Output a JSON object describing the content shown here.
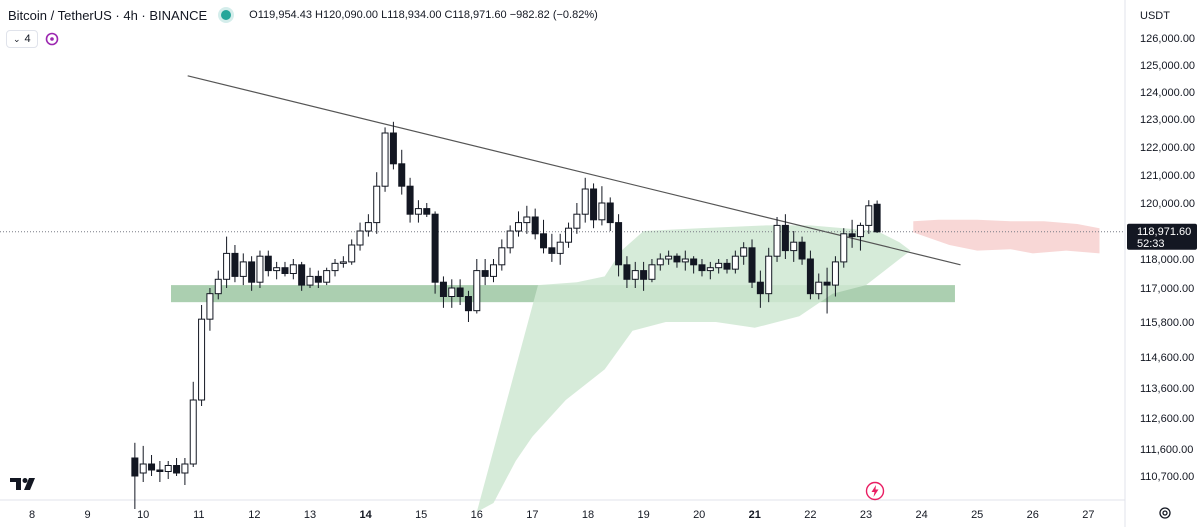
{
  "header": {
    "symbol_title": "Bitcoin / TetherUS · 4h · BINANCE",
    "ohlc": "O119,954.43 H120,090.00 L118,934.00 C118,971.60 −982.82 (−0.82%)",
    "indicator_count": "4",
    "currency": "USDT"
  },
  "current_price": {
    "label": "118,971.60",
    "countdown": "52:33",
    "value": 118971.6
  },
  "colors": {
    "candle_outline": "#131722",
    "candle_up_fill": "#ffffff",
    "candle_down_fill": "#131722",
    "support_zone": "#8fbf96",
    "cloud_green": "#cfe8d2",
    "cloud_red": "#f7d0cf",
    "trendline": "#555555",
    "price_line": "#787b86"
  },
  "chart_data": {
    "type": "candlestick",
    "title": "Bitcoin / TetherUS · 4h · BINANCE",
    "xlabel": "",
    "ylabel": "",
    "x_ticks": [
      "8",
      "9",
      "10",
      "11",
      "12",
      "13",
      "14",
      "15",
      "16",
      "17",
      "18",
      "19",
      "20",
      "21",
      "22",
      "23",
      "24",
      "25",
      "26",
      "27"
    ],
    "y_ticks": [
      126000,
      125000,
      124000,
      123000,
      122000,
      121000,
      120000,
      118000,
      117000,
      115800,
      114600,
      113600,
      112600,
      111600,
      110700
    ],
    "y_tick_labels": [
      "126,000.00",
      "125,000.00",
      "124,000.00",
      "123,000.00",
      "122,000.00",
      "121,000.00",
      "120,000.00",
      "118,000.00",
      "117,000.00",
      "115,800.00",
      "114,600.00",
      "113,600.00",
      "112,600.00",
      "111,600.00",
      "110,700.00"
    ],
    "candles": [
      {
        "d": 9.85,
        "o": 111300,
        "h": 111800,
        "l": 109600,
        "c": 110700
      },
      {
        "d": 10.0,
        "o": 110800,
        "h": 111700,
        "l": 110500,
        "c": 111100
      },
      {
        "d": 10.15,
        "o": 111100,
        "h": 111400,
        "l": 110700,
        "c": 110900
      },
      {
        "d": 10.3,
        "o": 110900,
        "h": 111200,
        "l": 110500,
        "c": 110850
      },
      {
        "d": 10.45,
        "o": 110850,
        "h": 111200,
        "l": 110600,
        "c": 111050
      },
      {
        "d": 10.6,
        "o": 111050,
        "h": 111300,
        "l": 110700,
        "c": 110800
      },
      {
        "d": 10.75,
        "o": 110800,
        "h": 111300,
        "l": 110400,
        "c": 111100
      },
      {
        "d": 10.9,
        "o": 111100,
        "h": 113800,
        "l": 111000,
        "c": 113200
      },
      {
        "d": 11.05,
        "o": 113200,
        "h": 116400,
        "l": 113000,
        "c": 115900
      },
      {
        "d": 11.2,
        "o": 115900,
        "h": 117000,
        "l": 115500,
        "c": 116800
      },
      {
        "d": 11.35,
        "o": 116800,
        "h": 117600,
        "l": 116600,
        "c": 117300
      },
      {
        "d": 11.5,
        "o": 117300,
        "h": 118800,
        "l": 117000,
        "c": 118200
      },
      {
        "d": 11.65,
        "o": 118200,
        "h": 118500,
        "l": 117200,
        "c": 117400
      },
      {
        "d": 11.8,
        "o": 117400,
        "h": 118200,
        "l": 117100,
        "c": 117900
      },
      {
        "d": 11.95,
        "o": 117900,
        "h": 118100,
        "l": 116900,
        "c": 117200
      },
      {
        "d": 12.1,
        "o": 117200,
        "h": 118300,
        "l": 117000,
        "c": 118100
      },
      {
        "d": 12.25,
        "o": 118100,
        "h": 118300,
        "l": 117400,
        "c": 117600
      },
      {
        "d": 12.4,
        "o": 117600,
        "h": 117900,
        "l": 117300,
        "c": 117700
      },
      {
        "d": 12.55,
        "o": 117700,
        "h": 117900,
        "l": 117400,
        "c": 117500
      },
      {
        "d": 12.7,
        "o": 117500,
        "h": 118000,
        "l": 117300,
        "c": 117800
      },
      {
        "d": 12.85,
        "o": 117800,
        "h": 117900,
        "l": 116900,
        "c": 117100
      },
      {
        "d": 13.0,
        "o": 117100,
        "h": 117700,
        "l": 117000,
        "c": 117400
      },
      {
        "d": 13.15,
        "o": 117400,
        "h": 117600,
        "l": 117000,
        "c": 117200
      },
      {
        "d": 13.3,
        "o": 117200,
        "h": 117700,
        "l": 117100,
        "c": 117600
      },
      {
        "d": 13.45,
        "o": 117600,
        "h": 118000,
        "l": 117400,
        "c": 117850
      },
      {
        "d": 13.6,
        "o": 117850,
        "h": 118100,
        "l": 117700,
        "c": 117900
      },
      {
        "d": 13.75,
        "o": 117900,
        "h": 118700,
        "l": 117800,
        "c": 118500
      },
      {
        "d": 13.9,
        "o": 118500,
        "h": 119300,
        "l": 118300,
        "c": 119000
      },
      {
        "d": 14.05,
        "o": 119000,
        "h": 119600,
        "l": 118800,
        "c": 119300
      },
      {
        "d": 14.2,
        "o": 119300,
        "h": 121100,
        "l": 118900,
        "c": 120600
      },
      {
        "d": 14.35,
        "o": 120600,
        "h": 122700,
        "l": 120400,
        "c": 122500
      },
      {
        "d": 14.5,
        "o": 122500,
        "h": 122900,
        "l": 121200,
        "c": 121400
      },
      {
        "d": 14.65,
        "o": 121400,
        "h": 121900,
        "l": 120300,
        "c": 120600
      },
      {
        "d": 14.8,
        "o": 120600,
        "h": 120900,
        "l": 119300,
        "c": 119600
      },
      {
        "d": 14.95,
        "o": 119600,
        "h": 120100,
        "l": 119300,
        "c": 119800
      },
      {
        "d": 15.1,
        "o": 119800,
        "h": 120000,
        "l": 119500,
        "c": 119600
      },
      {
        "d": 15.25,
        "o": 119600,
        "h": 119700,
        "l": 116800,
        "c": 117200
      },
      {
        "d": 15.4,
        "o": 117200,
        "h": 117400,
        "l": 116300,
        "c": 116700
      },
      {
        "d": 15.55,
        "o": 116700,
        "h": 117300,
        "l": 116300,
        "c": 117000
      },
      {
        "d": 15.7,
        "o": 117000,
        "h": 117300,
        "l": 116400,
        "c": 116700
      },
      {
        "d": 15.85,
        "o": 116700,
        "h": 116900,
        "l": 115800,
        "c": 116200
      },
      {
        "d": 16.0,
        "o": 116200,
        "h": 118000,
        "l": 116100,
        "c": 117600
      },
      {
        "d": 16.15,
        "o": 117600,
        "h": 118000,
        "l": 117100,
        "c": 117400
      },
      {
        "d": 16.3,
        "o": 117400,
        "h": 118000,
        "l": 117200,
        "c": 117800
      },
      {
        "d": 16.45,
        "o": 117800,
        "h": 118700,
        "l": 117600,
        "c": 118400
      },
      {
        "d": 16.6,
        "o": 118400,
        "h": 119200,
        "l": 118200,
        "c": 119000
      },
      {
        "d": 16.75,
        "o": 119000,
        "h": 119700,
        "l": 118800,
        "c": 119300
      },
      {
        "d": 16.9,
        "o": 119300,
        "h": 119900,
        "l": 118900,
        "c": 119500
      },
      {
        "d": 17.05,
        "o": 119500,
        "h": 119800,
        "l": 118700,
        "c": 118900
      },
      {
        "d": 17.2,
        "o": 118900,
        "h": 119400,
        "l": 118200,
        "c": 118400
      },
      {
        "d": 17.35,
        "o": 118400,
        "h": 118900,
        "l": 117900,
        "c": 118200
      },
      {
        "d": 17.5,
        "o": 118200,
        "h": 118900,
        "l": 117800,
        "c": 118600
      },
      {
        "d": 17.65,
        "o": 118600,
        "h": 119300,
        "l": 118400,
        "c": 119100
      },
      {
        "d": 17.8,
        "o": 119100,
        "h": 120000,
        "l": 118900,
        "c": 119600
      },
      {
        "d": 17.95,
        "o": 119600,
        "h": 120900,
        "l": 119300,
        "c": 120500
      },
      {
        "d": 18.1,
        "o": 120500,
        "h": 120700,
        "l": 119100,
        "c": 119400
      },
      {
        "d": 18.25,
        "o": 119400,
        "h": 120600,
        "l": 119200,
        "c": 120000
      },
      {
        "d": 18.4,
        "o": 120000,
        "h": 120200,
        "l": 119000,
        "c": 119300
      },
      {
        "d": 18.55,
        "o": 119300,
        "h": 119600,
        "l": 117400,
        "c": 117800
      },
      {
        "d": 18.7,
        "o": 117800,
        "h": 118100,
        "l": 117000,
        "c": 117300
      },
      {
        "d": 18.85,
        "o": 117300,
        "h": 117900,
        "l": 117000,
        "c": 117600
      },
      {
        "d": 19.0,
        "o": 117600,
        "h": 117900,
        "l": 116900,
        "c": 117300
      },
      {
        "d": 19.15,
        "o": 117300,
        "h": 118000,
        "l": 117200,
        "c": 117800
      },
      {
        "d": 19.3,
        "o": 117800,
        "h": 118200,
        "l": 117600,
        "c": 118000
      },
      {
        "d": 19.45,
        "o": 118000,
        "h": 118300,
        "l": 117800,
        "c": 118100
      },
      {
        "d": 19.6,
        "o": 118100,
        "h": 118200,
        "l": 117700,
        "c": 117900
      },
      {
        "d": 19.75,
        "o": 117900,
        "h": 118300,
        "l": 117600,
        "c": 118000
      },
      {
        "d": 19.9,
        "o": 118000,
        "h": 118100,
        "l": 117500,
        "c": 117800
      },
      {
        "d": 20.05,
        "o": 117800,
        "h": 118000,
        "l": 117400,
        "c": 117600
      },
      {
        "d": 20.2,
        "o": 117600,
        "h": 117900,
        "l": 117300,
        "c": 117700
      },
      {
        "d": 20.35,
        "o": 117700,
        "h": 118000,
        "l": 117500,
        "c": 117850
      },
      {
        "d": 20.5,
        "o": 117850,
        "h": 118000,
        "l": 117500,
        "c": 117650
      },
      {
        "d": 20.65,
        "o": 117650,
        "h": 118300,
        "l": 117500,
        "c": 118100
      },
      {
        "d": 20.8,
        "o": 118100,
        "h": 118600,
        "l": 117800,
        "c": 118400
      },
      {
        "d": 20.95,
        "o": 118400,
        "h": 118700,
        "l": 117000,
        "c": 117200
      },
      {
        "d": 21.1,
        "o": 117200,
        "h": 117600,
        "l": 116300,
        "c": 116800
      },
      {
        "d": 21.25,
        "o": 116800,
        "h": 118400,
        "l": 116500,
        "c": 118100
      },
      {
        "d": 21.4,
        "o": 118100,
        "h": 119500,
        "l": 117900,
        "c": 119200
      },
      {
        "d": 21.55,
        "o": 119200,
        "h": 119600,
        "l": 118000,
        "c": 118300
      },
      {
        "d": 21.7,
        "o": 118300,
        "h": 119000,
        "l": 117900,
        "c": 118600
      },
      {
        "d": 21.85,
        "o": 118600,
        "h": 118800,
        "l": 117800,
        "c": 118000
      },
      {
        "d": 22.0,
        "o": 118000,
        "h": 118300,
        "l": 116600,
        "c": 116800
      },
      {
        "d": 22.15,
        "o": 116800,
        "h": 117500,
        "l": 116600,
        "c": 117200
      },
      {
        "d": 22.3,
        "o": 117200,
        "h": 117700,
        "l": 116100,
        "c": 117100
      },
      {
        "d": 22.45,
        "o": 117100,
        "h": 118100,
        "l": 116700,
        "c": 117900
      },
      {
        "d": 22.6,
        "o": 117900,
        "h": 119100,
        "l": 117700,
        "c": 118900
      },
      {
        "d": 22.75,
        "o": 118900,
        "h": 119400,
        "l": 118400,
        "c": 118800
      },
      {
        "d": 22.9,
        "o": 118800,
        "h": 119300,
        "l": 118300,
        "c": 119200
      },
      {
        "d": 23.05,
        "o": 119200,
        "h": 120100,
        "l": 118900,
        "c": 119900
      },
      {
        "d": 23.2,
        "o": 119954.43,
        "h": 120090,
        "l": 118934,
        "c": 118971.6
      }
    ],
    "support_zone": {
      "x_start": 10.5,
      "x_end": 24.6,
      "y_low": 116500,
      "y_high": 117100
    },
    "trendline": {
      "x1": 10.8,
      "y1": 124600,
      "x2": 24.7,
      "y2": 117800
    },
    "cloud_green": {
      "top": [
        [
          17.1,
          117100
        ],
        [
          17.8,
          117200
        ],
        [
          18.3,
          117400
        ],
        [
          18.6,
          118300
        ],
        [
          19.0,
          119000
        ],
        [
          20.0,
          119100
        ],
        [
          21.2,
          119200
        ],
        [
          22.0,
          119200
        ],
        [
          22.6,
          119100
        ],
        [
          23.2,
          119000
        ],
        [
          23.6,
          118600
        ],
        [
          23.8,
          118300
        ]
      ],
      "bottom": [
        [
          16.0,
          109500
        ],
        [
          16.3,
          109800
        ],
        [
          16.7,
          111200
        ],
        [
          17.0,
          112000
        ],
        [
          17.6,
          113200
        ],
        [
          18.3,
          114200
        ],
        [
          18.8,
          115500
        ],
        [
          19.4,
          115800
        ],
        [
          20.3,
          115800
        ],
        [
          21.0,
          115600
        ],
        [
          21.8,
          116000
        ],
        [
          22.4,
          116800
        ],
        [
          23.0,
          117100
        ],
        [
          23.8,
          118300
        ]
      ]
    },
    "cloud_red": {
      "top": [
        [
          23.85,
          119350
        ],
        [
          24.3,
          119400
        ],
        [
          25.0,
          119400
        ],
        [
          25.6,
          119350
        ],
        [
          26.2,
          119350
        ],
        [
          26.8,
          119250
        ],
        [
          27.2,
          119100
        ]
      ],
      "bottom": [
        [
          23.85,
          118950
        ],
        [
          24.5,
          118500
        ],
        [
          25.0,
          118300
        ],
        [
          25.6,
          118350
        ],
        [
          26.0,
          118200
        ],
        [
          26.6,
          118300
        ],
        [
          27.2,
          118200
        ]
      ]
    },
    "price_level": 118971.6
  }
}
